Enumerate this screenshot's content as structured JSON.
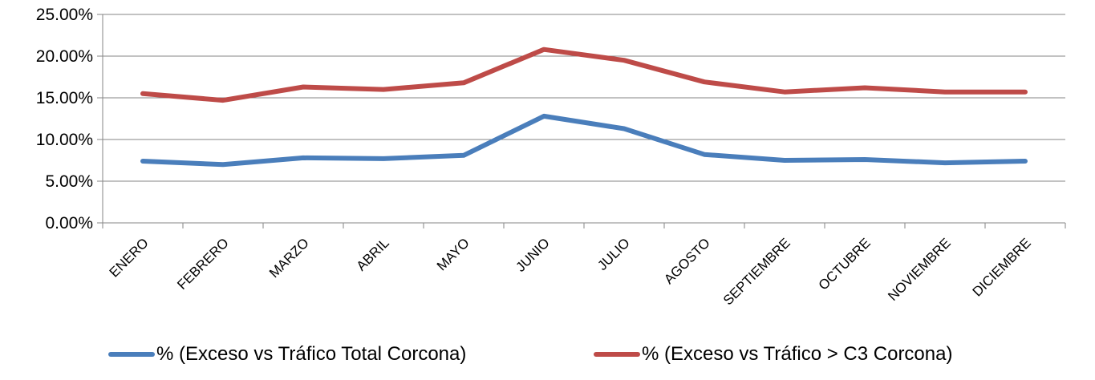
{
  "chart_data": {
    "type": "line",
    "categories": [
      "ENERO",
      "FEBRERO",
      "MARZO",
      "ABRIL",
      "MAYO",
      "JUNIO",
      "JULIO",
      "AGOSTO",
      "SEPTIEMBRE",
      "OCTUBRE",
      "NOVIEMBRE",
      "DICIEMBRE"
    ],
    "series": [
      {
        "name": "% (Exceso vs Tráfico Total Corcona)",
        "color": "#4a7ebb",
        "values": [
          7.4,
          7.0,
          7.8,
          7.7,
          8.1,
          12.8,
          11.3,
          8.2,
          7.5,
          7.6,
          7.2,
          7.4
        ]
      },
      {
        "name": "% (Exceso vs Tráfico > C3 Corcona)",
        "color": "#be4b48",
        "values": [
          15.5,
          14.7,
          16.3,
          16.0,
          16.8,
          20.8,
          19.5,
          16.9,
          15.7,
          16.2,
          15.7,
          15.7
        ]
      }
    ],
    "ylim": [
      0,
      25
    ],
    "yticks": [
      "0.00%",
      "5.00%",
      "10.00%",
      "15.00%",
      "20.00%",
      "25.00%"
    ],
    "grid": true,
    "legend_position": "bottom"
  }
}
